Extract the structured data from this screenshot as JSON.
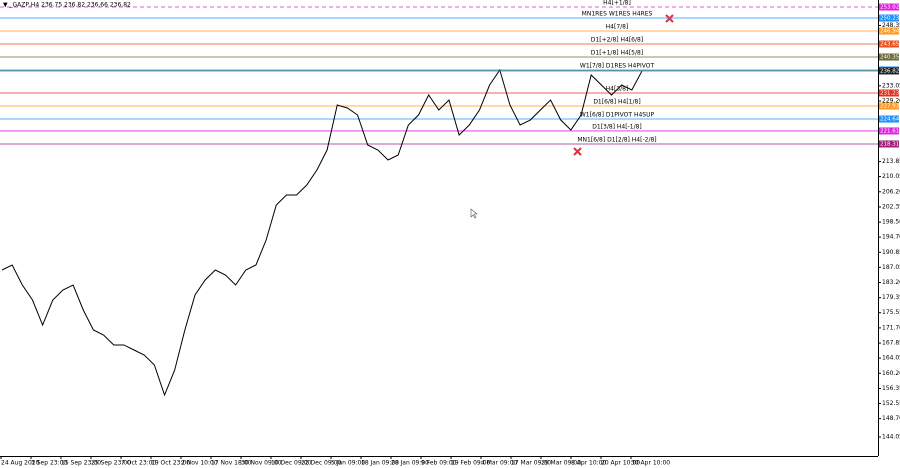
{
  "chart_data": {
    "type": "line",
    "header": "▼ _GAZP,H4 236.75 236.82 236.66 236.82",
    "xtick_labels": [
      "24 Aug 2020",
      "3 Sep 23:00",
      "15 Sep 23:00",
      "25 Sep 23:00",
      "7 Oct 23:00",
      "19 Oct 23:00",
      "2 Nov 10:00",
      "17 Nov 18:00",
      "30 Nov 09:00",
      "10 Dec 09:00",
      "22 Dec 09:00",
      "5 Jan 09:00",
      "18 Jan 09:00",
      "28 Jan 09:00",
      "9 Feb 09:00",
      "19 Feb 09:00",
      "4 Mar 09:00",
      "17 Mar 09:00",
      "29 Mar 09:00",
      "8 Apr 10:00",
      "20 Apr 10:00",
      "30 Apr 10:00"
    ],
    "ylim": [
      138.22,
      254.8
    ],
    "yticks": [
      {
        "value": 144.05,
        "label": "144.05"
      },
      {
        "value": 148.7,
        "label": "148.70"
      },
      152.55,
      156.35,
      {
        "value": 160.2,
        "label": "160.20"
      },
      164.05,
      167.85,
      {
        "value": 171.7,
        "label": "171.70"
      },
      175.55,
      179.35,
      {
        "value": 183.2,
        "label": "183.20"
      },
      187.05,
      190.85,
      {
        "value": 194.7,
        "label": "194.70"
      },
      {
        "value": 198.5,
        "label": "198.50"
      },
      202.35,
      {
        "value": 206.2,
        "label": "206.20"
      },
      210.05,
      213.85,
      {
        "value": 229.2,
        "label": "229.20"
      },
      233.05,
      248.35
    ],
    "series": [
      {
        "name": "_GAZP,H4",
        "color": "#000000",
        "values": [
          186.37,
          187.64,
          182.57,
          178.77,
          172.43,
          178.77,
          181.3,
          182.57,
          176.24,
          171.17,
          169.9,
          167.37,
          167.37,
          166.1,
          164.83,
          162.3,
          154.69,
          161.03,
          171.17,
          180.04,
          183.84,
          186.37,
          185.1,
          182.57,
          186.37,
          187.64,
          193.97,
          202.84,
          205.38,
          205.38,
          207.91,
          211.71,
          216.78,
          228.19,
          227.43,
          225.65,
          218.05,
          216.78,
          214.25,
          215.52,
          223.12,
          225.65,
          230.72,
          226.92,
          229.45,
          220.58,
          223.12,
          226.92,
          233.25,
          237.06,
          228.19,
          223.12,
          224.38,
          226.92,
          229.45,
          224.38,
          221.85,
          225.65,
          235.79,
          233.25,
          230.72,
          233.25,
          231.99,
          236.82
        ]
      }
    ],
    "levels": [
      {
        "label": "H4[+1/8]",
        "value": 253.02,
        "color": "#e020e0"
      },
      {
        "label": "MN1RES W1RES H4RES",
        "value": 250.23,
        "color": "#1e90ff"
      },
      {
        "label": "H4[7/8]",
        "value": 246.94,
        "color": "#ff9a1e"
      },
      {
        "label": "D1[+2/8] H4[6/8]",
        "value": 243.65,
        "color": "#e8501e"
      },
      {
        "label": "D1[+1/8] H4[5/8]",
        "value": 240.35,
        "color": "#6b6b3a"
      },
      {
        "label": "W1[7/8] D1RES H4PIVOT",
        "value": 237.06,
        "color": "#1e90ff"
      },
      {
        "label": "H4[3/8]",
        "value": 231.23,
        "color": "#e8301e"
      },
      {
        "label": "D1[6/8] H4[1/8]",
        "value": 227.93,
        "color": "#ff9a1e"
      },
      {
        "label": "W1[6/8] D1PIVOT H4SUP",
        "value": 224.64,
        "color": "#1e90ff"
      },
      {
        "label": "D1[3/8] H4[-1/8]",
        "value": 221.61,
        "color": "#e020e0"
      },
      {
        "label": "MN1[6/8] D1[2/8] H4[-2/8]",
        "value": 218.31,
        "color": "#a0207a"
      }
    ]
  }
}
